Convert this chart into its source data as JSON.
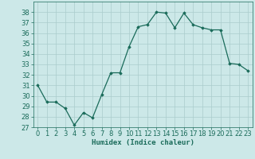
{
  "x": [
    0,
    1,
    2,
    3,
    4,
    5,
    6,
    7,
    8,
    9,
    10,
    11,
    12,
    13,
    14,
    15,
    16,
    17,
    18,
    19,
    20,
    21,
    22,
    23
  ],
  "y": [
    31.0,
    29.4,
    29.4,
    28.8,
    27.2,
    28.4,
    27.9,
    30.1,
    32.2,
    32.2,
    34.7,
    36.6,
    36.8,
    38.0,
    37.9,
    36.5,
    37.9,
    36.8,
    36.5,
    36.3,
    36.3,
    33.1,
    33.0,
    32.4
  ],
  "line_color": "#1a6b5a",
  "marker": "D",
  "marker_size": 1.8,
  "bg_color": "#cce8e8",
  "grid_color": "#aacccc",
  "xlabel": "Humidex (Indice chaleur)",
  "xlim": [
    -0.5,
    23.5
  ],
  "ylim": [
    27,
    39
  ],
  "yticks": [
    27,
    28,
    29,
    30,
    31,
    32,
    33,
    34,
    35,
    36,
    37,
    38
  ],
  "xticks": [
    0,
    1,
    2,
    3,
    4,
    5,
    6,
    7,
    8,
    9,
    10,
    11,
    12,
    13,
    14,
    15,
    16,
    17,
    18,
    19,
    20,
    21,
    22,
    23
  ],
  "xlabel_fontsize": 6.5,
  "tick_fontsize": 6.0,
  "line_width": 0.9
}
